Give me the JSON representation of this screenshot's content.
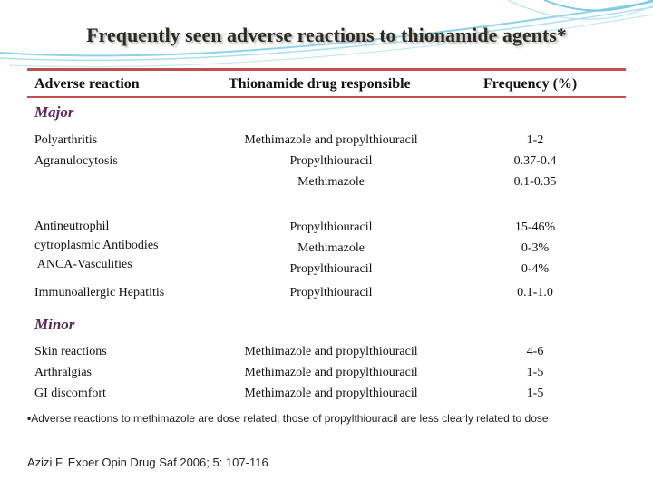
{
  "title": "Frequently seen adverse reactions to thionamide agents*",
  "columns": [
    "Adverse reaction",
    "Thionamide drug responsible",
    "Frequency (%)"
  ],
  "sections": [
    {
      "label": "Major",
      "groups": [
        {
          "reactions": [
            "Polyarthritis",
            "Agranulocytosis"
          ],
          "drugs": [
            "Methimazole and propylthiouracil",
            "Propylthiouracil",
            "Methimazole"
          ],
          "frequencies": [
            "1-2",
            "0.37-0.4",
            "0.1-0.35"
          ]
        },
        {
          "reactions": [
            "Antineutrophil",
            "cytroplasmic Antibodies",
            " ANCA-Vasculities"
          ],
          "drugs": [
            "Propylthiouracil",
            "Methimazole",
            "Propylthiouracil"
          ],
          "frequencies": [
            "15-46%",
            "0-3%",
            "0-4%"
          ]
        },
        {
          "reactions": [
            "Immunoallergic Hepatitis"
          ],
          "drugs": [
            "Propylthiouracil"
          ],
          "frequencies": [
            "0.1-1.0"
          ]
        }
      ]
    },
    {
      "label": "Minor",
      "groups": [
        {
          "reactions": [
            "Skin reactions",
            "Arthralgias",
            "GI discomfort"
          ],
          "drugs": [
            "Methimazole and propylthiouracil",
            "Methimazole and propylthiouracil",
            "Methimazole and propylthiouracil"
          ],
          "frequencies": [
            "4-6",
            "1-5",
            "1-5"
          ]
        }
      ]
    }
  ],
  "footnote": "▪Adverse reactions to methimazole are dose related; those of propylthiouracil are less clearly  related to dose",
  "citation": "Azizi F. Exper Opin Drug Saf 2006; 5: 107-116",
  "colors": {
    "rule": "#c0504d",
    "section": "#5a2a57",
    "decoration": "#8fd3e8"
  }
}
